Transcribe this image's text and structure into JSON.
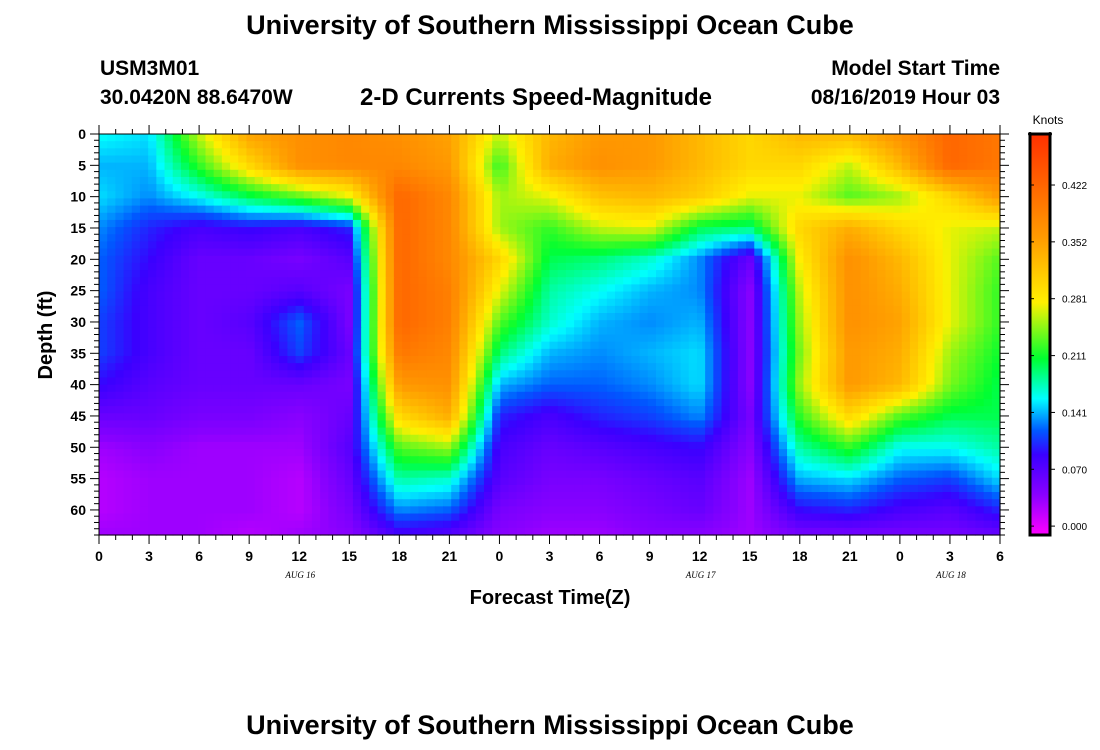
{
  "header": {
    "title": "University of Southern Mississippi Ocean Cube",
    "station_id": "USM3M01",
    "coordinates": "30.0420N 88.6470W",
    "model_start_label": "Model Start Time",
    "model_start_value": "08/16/2019 Hour 03"
  },
  "footer": {
    "title": "University of Southern Mississippi Ocean Cube"
  },
  "chart_data": {
    "type": "heatmap",
    "title": "2-D Currents Speed-Magnitude",
    "xlabel": "Forecast Time(Z)",
    "ylabel": "Depth (ft)",
    "x_hours": [
      0,
      3,
      6,
      9,
      12,
      15,
      18,
      21,
      24,
      27,
      30,
      33,
      36,
      39,
      42,
      45,
      48,
      51,
      54
    ],
    "x_tick_labels": [
      "0",
      "3",
      "6",
      "9",
      "12",
      "15",
      "18",
      "21",
      "0",
      "3",
      "6",
      "9",
      "12",
      "15",
      "18",
      "21",
      "0",
      "3",
      "6"
    ],
    "date_labels": [
      {
        "label": "AUG 16",
        "hour": 12
      },
      {
        "label": "AUG 17",
        "hour": 36
      },
      {
        "label": "AUG 18",
        "hour": 51
      }
    ],
    "depths_ft": [
      0,
      5,
      10,
      15,
      20,
      25,
      30,
      35,
      40,
      45,
      50,
      55,
      60,
      64
    ],
    "y_tick_labels": [
      "0",
      "5",
      "10",
      "15",
      "20",
      "25",
      "30",
      "35",
      "40",
      "45",
      "50",
      "55",
      "60"
    ],
    "ylim": [
      0,
      64
    ],
    "xlim": [
      0,
      54
    ],
    "values": [
      [
        0.16,
        0.15,
        0.26,
        0.35,
        0.37,
        0.38,
        0.37,
        0.35,
        0.26,
        0.33,
        0.36,
        0.36,
        0.33,
        0.3,
        0.33,
        0.33,
        0.37,
        0.42,
        0.4
      ],
      [
        0.14,
        0.14,
        0.22,
        0.3,
        0.37,
        0.38,
        0.38,
        0.36,
        0.22,
        0.34,
        0.37,
        0.36,
        0.33,
        0.3,
        0.3,
        0.26,
        0.33,
        0.42,
        0.4
      ],
      [
        0.15,
        0.13,
        0.16,
        0.2,
        0.23,
        0.27,
        0.42,
        0.38,
        0.25,
        0.27,
        0.32,
        0.33,
        0.31,
        0.27,
        0.27,
        0.23,
        0.25,
        0.3,
        0.36
      ],
      [
        0.13,
        0.1,
        0.08,
        0.09,
        0.08,
        0.1,
        0.42,
        0.38,
        0.25,
        0.22,
        0.26,
        0.27,
        0.2,
        0.19,
        0.3,
        0.34,
        0.3,
        0.27,
        0.26
      ],
      [
        0.12,
        0.09,
        0.06,
        0.06,
        0.05,
        0.07,
        0.42,
        0.38,
        0.3,
        0.2,
        0.19,
        0.17,
        0.13,
        0.06,
        0.28,
        0.37,
        0.33,
        0.27,
        0.23
      ],
      [
        0.12,
        0.08,
        0.06,
        0.06,
        0.07,
        0.05,
        0.42,
        0.39,
        0.27,
        0.18,
        0.16,
        0.14,
        0.13,
        0.04,
        0.26,
        0.37,
        0.34,
        0.27,
        0.22
      ],
      [
        0.11,
        0.08,
        0.06,
        0.07,
        0.12,
        0.05,
        0.42,
        0.39,
        0.23,
        0.17,
        0.14,
        0.13,
        0.14,
        0.04,
        0.25,
        0.37,
        0.35,
        0.27,
        0.22
      ],
      [
        0.11,
        0.08,
        0.06,
        0.06,
        0.11,
        0.06,
        0.4,
        0.38,
        0.19,
        0.14,
        0.13,
        0.14,
        0.15,
        0.04,
        0.24,
        0.36,
        0.34,
        0.25,
        0.21
      ],
      [
        0.09,
        0.07,
        0.06,
        0.06,
        0.06,
        0.05,
        0.36,
        0.37,
        0.14,
        0.12,
        0.12,
        0.13,
        0.15,
        0.04,
        0.25,
        0.36,
        0.33,
        0.24,
        0.2
      ],
      [
        0.06,
        0.06,
        0.05,
        0.05,
        0.04,
        0.06,
        0.3,
        0.34,
        0.1,
        0.08,
        0.1,
        0.11,
        0.13,
        0.05,
        0.22,
        0.3,
        0.23,
        0.2,
        0.2
      ],
      [
        0.03,
        0.04,
        0.03,
        0.03,
        0.03,
        0.07,
        0.23,
        0.25,
        0.08,
        0.06,
        0.07,
        0.08,
        0.09,
        0.04,
        0.18,
        0.22,
        0.16,
        0.16,
        0.18
      ],
      [
        0.02,
        0.03,
        0.03,
        0.03,
        0.02,
        0.06,
        0.18,
        0.17,
        0.07,
        0.05,
        0.05,
        0.06,
        0.07,
        0.03,
        0.14,
        0.15,
        0.12,
        0.11,
        0.15
      ],
      [
        0.02,
        0.03,
        0.03,
        0.03,
        0.02,
        0.05,
        0.13,
        0.12,
        0.05,
        0.04,
        0.04,
        0.05,
        0.06,
        0.03,
        0.09,
        0.1,
        0.08,
        0.07,
        0.1
      ],
      [
        0.03,
        0.03,
        0.03,
        0.02,
        0.03,
        0.04,
        0.08,
        0.07,
        0.04,
        0.03,
        0.03,
        0.04,
        0.04,
        0.03,
        0.05,
        0.05,
        0.05,
        0.05,
        0.06
      ]
    ],
    "colorbar": {
      "unit": "Knots",
      "tick_labels": [
        "0.000",
        "0.070",
        "0.141",
        "0.211",
        "0.281",
        "0.352",
        "0.422"
      ],
      "tick_values": [
        0.0,
        0.0703,
        0.1406,
        0.2109,
        0.2813,
        0.3516,
        0.4219
      ],
      "range": [
        -0.011,
        0.485
      ],
      "colors": [
        "#ff00ff",
        "#8a00ff",
        "#3a00ff",
        "#0058ff",
        "#00ffff",
        "#00ff30",
        "#fff000",
        "#ff9c00",
        "#ff3000"
      ],
      "color_stops": [
        0.0,
        0.1,
        0.2,
        0.26,
        0.34,
        0.44,
        0.58,
        0.74,
        1.0
      ]
    }
  }
}
